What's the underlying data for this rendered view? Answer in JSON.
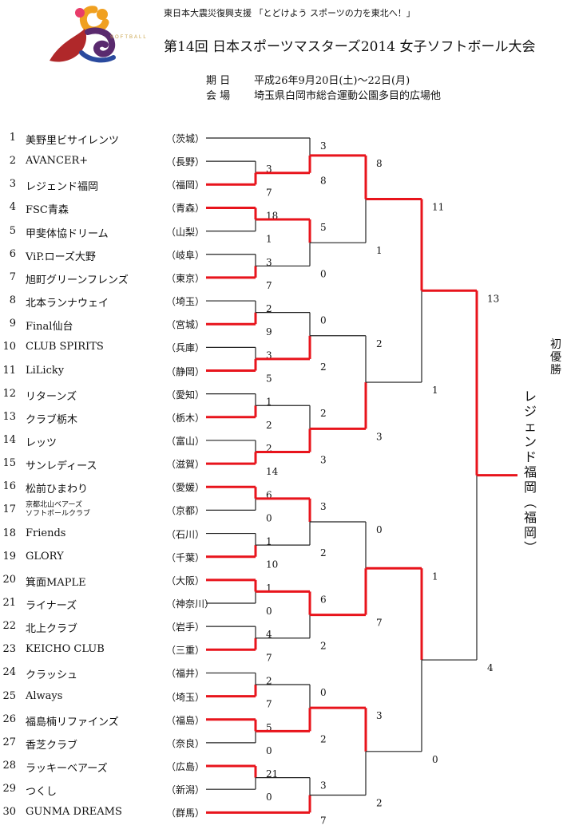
{
  "header": {
    "support_line": "東日本大震災復興支援 「とどけよう スポーツの力を東北へ！」",
    "title": "第14回 日本スポーツマスターズ2014 女子ソフトボール大会",
    "period_label": "期 日",
    "period_value": "平成26年9月20日(土)～22日(月)",
    "venue_label": "会 場",
    "venue_value": "埼玉県白岡市総合運動公園多目的広場他",
    "logo_text": "SOFTBALL"
  },
  "teams": [
    {
      "num": "1",
      "name": "美野里ビサイレンツ",
      "pref": "（茨城）"
    },
    {
      "num": "2",
      "name": "AVANCER+",
      "pref": "（長野）"
    },
    {
      "num": "3",
      "name": "レジェンド福岡",
      "pref": "（福岡）"
    },
    {
      "num": "4",
      "name": "FSC青森",
      "pref": "（青森）"
    },
    {
      "num": "5",
      "name": "甲斐体協ドリーム",
      "pref": "（山梨）"
    },
    {
      "num": "6",
      "name": "ViP.ローズ大野",
      "pref": "（岐阜）"
    },
    {
      "num": "7",
      "name": "旭町グリーンフレンズ",
      "pref": "（東京）"
    },
    {
      "num": "8",
      "name": "北本ランナウェイ",
      "pref": "（埼玉）"
    },
    {
      "num": "9",
      "name": "Final仙台",
      "pref": "（宮城）"
    },
    {
      "num": "10",
      "name": "CLUB SPIRITS",
      "pref": "（兵庫）"
    },
    {
      "num": "11",
      "name": "LiLicky",
      "pref": "（静岡）"
    },
    {
      "num": "12",
      "name": "リターンズ",
      "pref": "（愛知）"
    },
    {
      "num": "13",
      "name": "クラブ栃木",
      "pref": "（栃木）"
    },
    {
      "num": "14",
      "name": "レッツ",
      "pref": "（富山）"
    },
    {
      "num": "15",
      "name": "サンレディース",
      "pref": "（滋賀）"
    },
    {
      "num": "16",
      "name": "松前ひまわり",
      "pref": "（愛媛）"
    },
    {
      "num": "17",
      "name": "京都北山ベアーズ",
      "name2": "ソフトボールクラブ",
      "pref": "（京都）"
    },
    {
      "num": "18",
      "name": "Friends",
      "pref": "（石川）"
    },
    {
      "num": "19",
      "name": "GLORY",
      "pref": "（千葉）"
    },
    {
      "num": "20",
      "name": "箕面MAPLE",
      "pref": "（大阪）"
    },
    {
      "num": "21",
      "name": "ライナーズ",
      "pref": "（神奈川）"
    },
    {
      "num": "22",
      "name": "北上クラブ",
      "pref": "（岩手）"
    },
    {
      "num": "23",
      "name": "KEICHO CLUB",
      "pref": "（三重）"
    },
    {
      "num": "24",
      "name": "クラッシュ",
      "pref": "（福井）"
    },
    {
      "num": "25",
      "name": "Always",
      "pref": "（埼玉）"
    },
    {
      "num": "26",
      "name": "福島楠リファインズ",
      "pref": "（福島）"
    },
    {
      "num": "27",
      "name": "香芝クラブ",
      "pref": "（奈良）"
    },
    {
      "num": "28",
      "name": "ラッキーベアーズ",
      "pref": "（広島）"
    },
    {
      "num": "29",
      "name": "つくし",
      "pref": "（新潟）"
    },
    {
      "num": "30",
      "name": "GUNMA DREAMS",
      "pref": "（群馬）"
    }
  ],
  "matches": [
    {
      "id": "m2_3",
      "from": [
        2,
        3
      ],
      "scores": [
        "3",
        "7"
      ],
      "winner": 1
    },
    {
      "id": "m4_5",
      "from": [
        4,
        5
      ],
      "scores": [
        "18",
        "1"
      ],
      "winner": 0
    },
    {
      "id": "m6_7",
      "from": [
        6,
        7
      ],
      "scores": [
        "3",
        "7"
      ],
      "winner": 1
    },
    {
      "id": "m8_9",
      "from": [
        8,
        9
      ],
      "scores": [
        "2",
        "9"
      ],
      "winner": 1
    },
    {
      "id": "m10_11",
      "from": [
        10,
        11
      ],
      "scores": [
        "3",
        "5"
      ],
      "winner": 1
    },
    {
      "id": "m12_13",
      "from": [
        12,
        13
      ],
      "scores": [
        "1",
        "2"
      ],
      "winner": 1
    },
    {
      "id": "m14_15",
      "from": [
        14,
        15
      ],
      "scores": [
        "2",
        "14"
      ],
      "winner": 1
    },
    {
      "id": "m16_17",
      "from": [
        16,
        17
      ],
      "scores": [
        "6",
        "0"
      ],
      "winner": 0
    },
    {
      "id": "m18_19",
      "from": [
        18,
        19
      ],
      "scores": [
        "1",
        "10"
      ],
      "winner": 1
    },
    {
      "id": "m20_21",
      "from": [
        20,
        21
      ],
      "scores": [
        "1",
        "0"
      ],
      "winner": 0
    },
    {
      "id": "m22_23",
      "from": [
        22,
        23
      ],
      "scores": [
        "4",
        "7"
      ],
      "winner": 1
    },
    {
      "id": "m24_25",
      "from": [
        24,
        25
      ],
      "scores": [
        "2",
        "7"
      ],
      "winner": 1
    },
    {
      "id": "m26_27",
      "from": [
        26,
        27
      ],
      "scores": [
        "5",
        "0"
      ],
      "winner": 0
    },
    {
      "id": "m28_29",
      "from": [
        28,
        29
      ],
      "scores": [
        "21",
        "0"
      ],
      "winner": 0
    },
    {
      "id": "m1_A",
      "from": [
        1,
        "m2_3"
      ],
      "scores": [
        "3",
        "8"
      ],
      "winner": 1
    },
    {
      "id": "mB_C",
      "from": [
        "m4_5",
        "m6_7"
      ],
      "scores": [
        "5",
        "0"
      ],
      "winner": 0
    },
    {
      "id": "mD_E",
      "from": [
        "m8_9",
        "m10_11"
      ],
      "scores": [
        "0",
        "2"
      ],
      "winner": 1
    },
    {
      "id": "mF_G",
      "from": [
        "m12_13",
        "m14_15"
      ],
      "scores": [
        "2",
        "3"
      ],
      "winner": 1
    },
    {
      "id": "mH_I",
      "from": [
        "m16_17",
        "m18_19"
      ],
      "scores": [
        "3",
        "2"
      ],
      "winner": 0
    },
    {
      "id": "mJ_K",
      "from": [
        "m20_21",
        "m22_23"
      ],
      "scores": [
        "6",
        "2"
      ],
      "winner": 0
    },
    {
      "id": "mL_M",
      "from": [
        "m24_25",
        "m26_27"
      ],
      "scores": [
        "0",
        "2"
      ],
      "winner": 1
    },
    {
      "id": "mN_30",
      "from": [
        "m28_29",
        30
      ],
      "scores": [
        "3",
        "7"
      ],
      "winner": 1
    },
    {
      "id": "q1",
      "from": [
        "m1_A",
        "mB_C"
      ],
      "scores": [
        "8",
        "1"
      ],
      "winner": 0
    },
    {
      "id": "q2",
      "from": [
        "mD_E",
        "mF_G"
      ],
      "scores": [
        "2",
        "3"
      ],
      "winner": 1
    },
    {
      "id": "q3",
      "from": [
        "mH_I",
        "mJ_K"
      ],
      "scores": [
        "0",
        "7"
      ],
      "winner": 1
    },
    {
      "id": "q4",
      "from": [
        "mL_M",
        "mN_30"
      ],
      "scores": [
        "3",
        "2"
      ],
      "winner": 0
    },
    {
      "id": "s1",
      "from": [
        "q1",
        "q2"
      ],
      "scores": [
        "11",
        "1"
      ],
      "winner": 0
    },
    {
      "id": "s2",
      "from": [
        "q3",
        "q4"
      ],
      "scores": [
        "1",
        "0"
      ],
      "winner": 0
    },
    {
      "id": "final",
      "from": [
        "s1",
        "s2"
      ],
      "scores": [
        "13",
        "4"
      ],
      "winner": 0
    }
  ],
  "champion": {
    "label": "初優勝",
    "team": "レジェンド福岡（福岡）"
  },
  "colors": {
    "win_line": "#e8141c",
    "lose_line": "#222222",
    "logo_orange": "#f0a020",
    "logo_red": "#b0282a",
    "logo_purple": "#5a2a6e"
  }
}
